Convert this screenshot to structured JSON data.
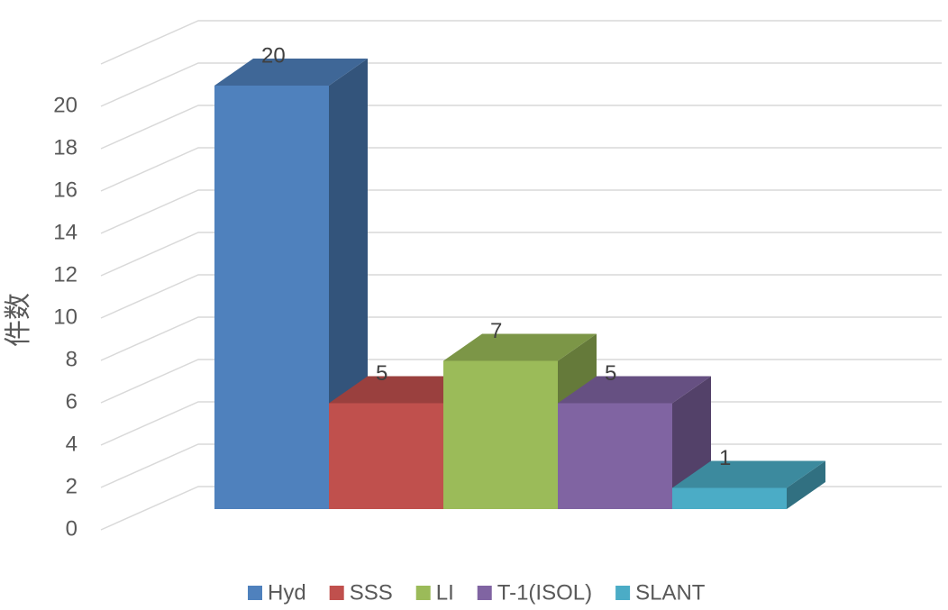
{
  "chart_data": {
    "type": "bar3d",
    "y_label": "件数",
    "categories": [
      null
    ],
    "series": [
      {
        "name": "Hyd",
        "color": "#4f81bd",
        "values": [
          20
        ]
      },
      {
        "name": "SSS",
        "color": "#c0504d",
        "values": [
          5
        ]
      },
      {
        "name": "LI",
        "color": "#9bbb59",
        "values": [
          7
        ]
      },
      {
        "name": "T-1(ISOL)",
        "color": "#8064a2",
        "values": [
          5
        ]
      },
      {
        "name": "SLANT",
        "color": "#4bacc6",
        "values": [
          1
        ]
      }
    ],
    "ylim": [
      0,
      22
    ],
    "yticks": [
      0,
      2,
      4,
      6,
      8,
      10,
      12,
      14,
      16,
      18,
      20
    ],
    "grid": true,
    "legend": "bottom"
  }
}
